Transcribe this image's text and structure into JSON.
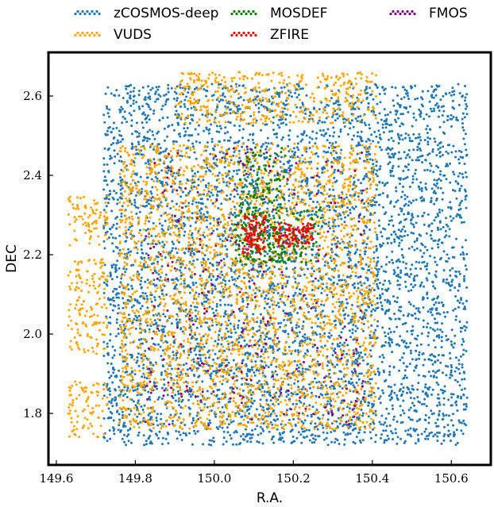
{
  "chart_data": {
    "type": "scatter",
    "title": "",
    "xlabel": "R.A.",
    "ylabel": "DEC",
    "xlim": [
      149.58,
      150.7
    ],
    "ylim": [
      1.67,
      2.71
    ],
    "xticks": [
      149.6,
      149.8,
      150.0,
      150.2,
      150.4,
      150.6
    ],
    "yticks": [
      1.8,
      2.0,
      2.2,
      2.4,
      2.6
    ],
    "xtick_labels": [
      "149.6",
      "149.8",
      "150.0",
      "150.2",
      "150.4",
      "150.6"
    ],
    "ytick_labels": [
      "1.8",
      "2.0",
      "2.2",
      "2.4",
      "2.6"
    ],
    "grid": false,
    "legend_position": "top, outside plot",
    "series": [
      {
        "name": "zCOSMOS-deep",
        "color": "#1f77b4",
        "approx_points": 5200,
        "regions": [
          {
            "x": [
              149.72,
              150.64
            ],
            "y": [
              1.72,
              2.63
            ]
          }
        ]
      },
      {
        "name": "VUDS",
        "color": "#ffa500",
        "approx_points": 3600,
        "regions": [
          {
            "x": [
              149.63,
              149.73
            ],
            "y": [
              2.22,
              2.35
            ]
          },
          {
            "x": [
              149.63,
              149.73
            ],
            "y": [
              1.95,
              2.19
            ]
          },
          {
            "x": [
              149.63,
              149.73
            ],
            "y": [
              1.74,
              1.88
            ]
          },
          {
            "x": [
              149.76,
              150.41
            ],
            "y": [
              1.76,
              2.48
            ]
          },
          {
            "x": [
              149.9,
              150.41
            ],
            "y": [
              2.53,
              2.66
            ]
          }
        ]
      },
      {
        "name": "MOSDEF",
        "color": "#008000",
        "approx_points": 330,
        "regions": [
          {
            "x": [
              150.06,
              150.18
            ],
            "y": [
              2.17,
              2.47
            ]
          },
          {
            "x": [
              150.05,
              150.27
            ],
            "y": [
              2.18,
              2.32
            ]
          }
        ]
      },
      {
        "name": "ZFIRE",
        "color": "#ff0000",
        "approx_points": 200,
        "regions": [
          {
            "x": [
              150.07,
              150.13
            ],
            "y": [
              2.2,
              2.3
            ]
          },
          {
            "x": [
              150.15,
              150.25
            ],
            "y": [
              2.22,
              2.28
            ]
          }
        ]
      },
      {
        "name": "FMOS",
        "color": "#800080",
        "approx_points": 260,
        "regions": [
          {
            "x": [
              149.82,
              150.38
            ],
            "y": [
              1.77,
              2.48
            ]
          }
        ]
      }
    ]
  }
}
